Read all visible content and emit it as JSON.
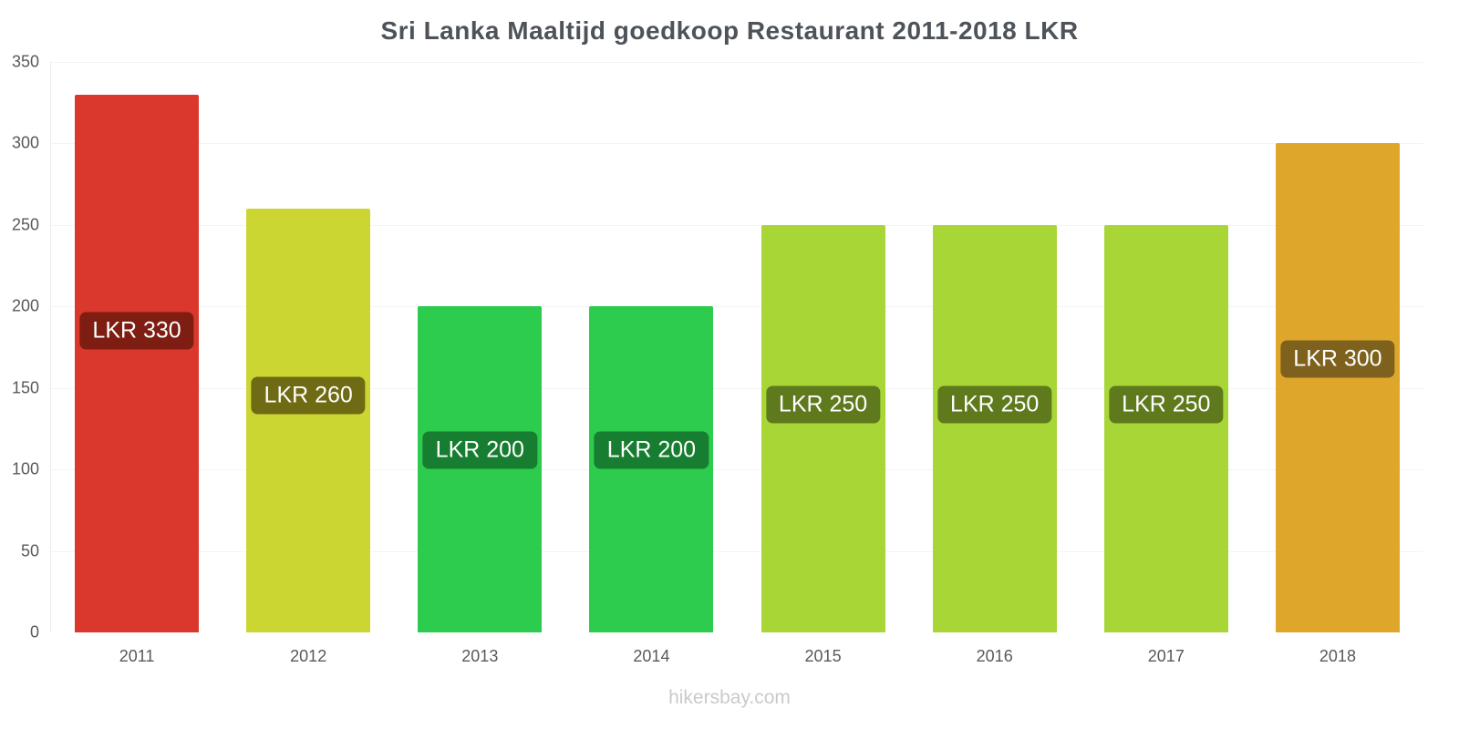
{
  "title": "Sri Lanka Maaltijd goedkoop Restaurant 2011-2018 LKR",
  "footer": "hikersbay.com",
  "chart_data": {
    "type": "bar",
    "title": "Sri Lanka Maaltijd goedkoop Restaurant 2011-2018 LKR",
    "categories": [
      "2011",
      "2012",
      "2013",
      "2014",
      "2015",
      "2016",
      "2017",
      "2018"
    ],
    "values": [
      330,
      260,
      200,
      200,
      250,
      250,
      250,
      300
    ],
    "value_labels": [
      "LKR 330",
      "LKR 260",
      "LKR 200",
      "LKR 200",
      "LKR 250",
      "LKR 250",
      "LKR 250",
      "LKR 300"
    ],
    "bar_colors": [
      "#da372d",
      "#ccd633",
      "#2dcc4e",
      "#2dcc4e",
      "#a8d636",
      "#a8d636",
      "#a8d636",
      "#dfa62c"
    ],
    "label_bg_colors": [
      "#7e1d12",
      "#6f6b14",
      "#177d31",
      "#177d31",
      "#5f7a1d",
      "#5f7a1d",
      "#5f7a1d",
      "#7d611c"
    ],
    "xlabel": "",
    "ylabel": "",
    "ylim": [
      0,
      350
    ],
    "yticks": [
      0,
      50,
      100,
      150,
      200,
      250,
      300,
      350
    ],
    "grid": true,
    "legend": false,
    "currency": "LKR"
  }
}
